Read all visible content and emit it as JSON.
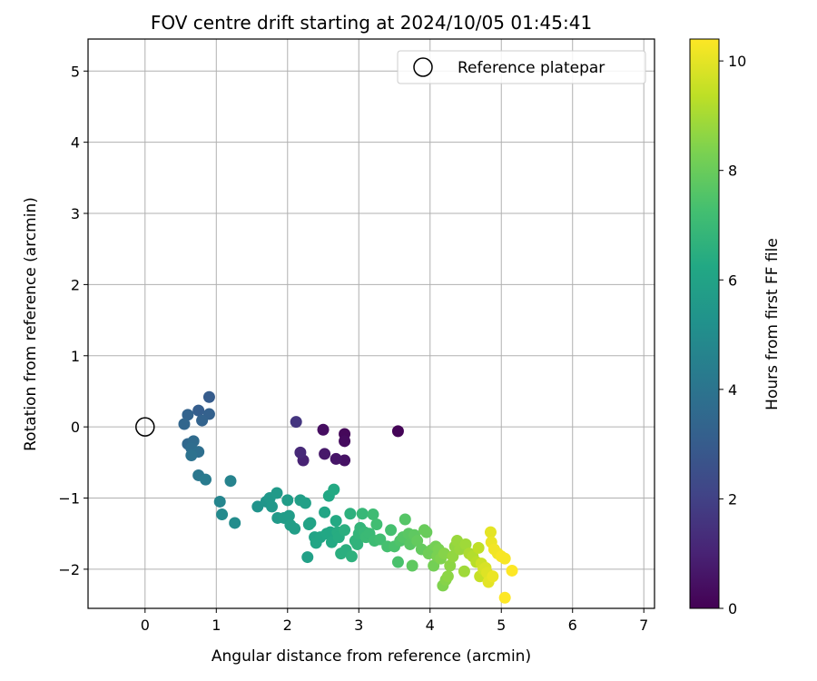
{
  "chart_data": {
    "type": "scatter",
    "title": "FOV centre drift starting at 2024/10/05 01:45:41",
    "xlabel": "Angular distance from reference (arcmin)",
    "ylabel": "Rotation from reference (arcmin)",
    "xlim": [
      -0.8,
      7.15
    ],
    "ylim": [
      -2.55,
      5.45
    ],
    "xticks": [
      0,
      1,
      2,
      3,
      4,
      5,
      6,
      7
    ],
    "yticks": [
      -2,
      -1,
      0,
      1,
      2,
      3,
      4,
      5
    ],
    "grid": true,
    "colormap": "viridis",
    "colorbar": {
      "label": "Hours from first FF file",
      "range": [
        0,
        10.4
      ],
      "ticks": [
        0,
        2,
        4,
        6,
        8,
        10
      ]
    },
    "legend": {
      "placement": "top-right",
      "entries": [
        {
          "label": "Reference platepar",
          "marker": "hollow-circle"
        }
      ]
    },
    "reference_point": {
      "x": 0,
      "y": 0
    },
    "points": [
      {
        "x": 3.55,
        "y": -0.06,
        "c": 0.1
      },
      {
        "x": 2.8,
        "y": -0.1,
        "c": 0.2
      },
      {
        "x": 2.8,
        "y": -0.2,
        "c": 0.3
      },
      {
        "x": 2.5,
        "y": -0.04,
        "c": 0.4
      },
      {
        "x": 2.8,
        "y": -0.47,
        "c": 0.5
      },
      {
        "x": 2.68,
        "y": -0.45,
        "c": 0.6
      },
      {
        "x": 2.52,
        "y": -0.38,
        "c": 0.7
      },
      {
        "x": 2.22,
        "y": -0.47,
        "c": 1.0
      },
      {
        "x": 2.18,
        "y": -0.36,
        "c": 1.2
      },
      {
        "x": 2.12,
        "y": 0.07,
        "c": 1.6
      },
      {
        "x": 0.9,
        "y": 0.42,
        "c": 3.0
      },
      {
        "x": 0.75,
        "y": 0.23,
        "c": 3.1
      },
      {
        "x": 0.9,
        "y": 0.18,
        "c": 3.2
      },
      {
        "x": 0.6,
        "y": 0.17,
        "c": 3.3
      },
      {
        "x": 0.8,
        "y": 0.09,
        "c": 3.3
      },
      {
        "x": 0.55,
        "y": 0.04,
        "c": 3.4
      },
      {
        "x": 0.6,
        "y": -0.24,
        "c": 3.5
      },
      {
        "x": 0.68,
        "y": -0.2,
        "c": 3.6
      },
      {
        "x": 0.65,
        "y": -0.3,
        "c": 3.7
      },
      {
        "x": 0.75,
        "y": -0.35,
        "c": 3.8
      },
      {
        "x": 0.65,
        "y": -0.4,
        "c": 3.9
      },
      {
        "x": 0.75,
        "y": -0.68,
        "c": 4.1
      },
      {
        "x": 0.85,
        "y": -0.74,
        "c": 4.3
      },
      {
        "x": 1.2,
        "y": -0.76,
        "c": 4.6
      },
      {
        "x": 1.05,
        "y": -1.05,
        "c": 4.7
      },
      {
        "x": 1.08,
        "y": -1.23,
        "c": 4.9
      },
      {
        "x": 1.26,
        "y": -1.35,
        "c": 5.0
      },
      {
        "x": 1.58,
        "y": -1.12,
        "c": 5.3
      },
      {
        "x": 1.7,
        "y": -1.05,
        "c": 5.4
      },
      {
        "x": 1.75,
        "y": -1.0,
        "c": 5.5
      },
      {
        "x": 1.78,
        "y": -1.12,
        "c": 5.5
      },
      {
        "x": 1.85,
        "y": -0.93,
        "c": 5.6
      },
      {
        "x": 1.86,
        "y": -1.28,
        "c": 5.6
      },
      {
        "x": 1.95,
        "y": -1.28,
        "c": 5.7
      },
      {
        "x": 2.0,
        "y": -1.03,
        "c": 5.7
      },
      {
        "x": 2.02,
        "y": -1.25,
        "c": 5.7
      },
      {
        "x": 2.04,
        "y": -1.38,
        "c": 5.8
      },
      {
        "x": 2.1,
        "y": -1.43,
        "c": 5.8
      },
      {
        "x": 2.18,
        "y": -1.03,
        "c": 5.8
      },
      {
        "x": 2.25,
        "y": -1.07,
        "c": 5.9
      },
      {
        "x": 2.28,
        "y": -1.83,
        "c": 5.9
      },
      {
        "x": 2.3,
        "y": -1.37,
        "c": 6.0
      },
      {
        "x": 2.32,
        "y": -1.35,
        "c": 6.0
      },
      {
        "x": 2.38,
        "y": -1.55,
        "c": 6.0
      },
      {
        "x": 2.4,
        "y": -1.63,
        "c": 6.1
      },
      {
        "x": 2.46,
        "y": -1.55,
        "c": 6.1
      },
      {
        "x": 2.52,
        "y": -1.2,
        "c": 6.1
      },
      {
        "x": 2.55,
        "y": -1.5,
        "c": 6.2
      },
      {
        "x": 2.58,
        "y": -0.97,
        "c": 6.2
      },
      {
        "x": 2.6,
        "y": -1.48,
        "c": 6.2
      },
      {
        "x": 2.62,
        "y": -1.62,
        "c": 6.3
      },
      {
        "x": 2.65,
        "y": -0.88,
        "c": 6.3
      },
      {
        "x": 2.68,
        "y": -1.32,
        "c": 6.3
      },
      {
        "x": 2.7,
        "y": -1.48,
        "c": 6.4
      },
      {
        "x": 2.72,
        "y": -1.55,
        "c": 6.4
      },
      {
        "x": 2.75,
        "y": -1.78,
        "c": 6.5
      },
      {
        "x": 2.8,
        "y": -1.45,
        "c": 6.5
      },
      {
        "x": 2.82,
        "y": -1.73,
        "c": 6.5
      },
      {
        "x": 2.88,
        "y": -1.22,
        "c": 6.6
      },
      {
        "x": 2.9,
        "y": -1.82,
        "c": 6.6
      },
      {
        "x": 2.95,
        "y": -1.6,
        "c": 6.7
      },
      {
        "x": 2.98,
        "y": -1.65,
        "c": 6.7
      },
      {
        "x": 3.0,
        "y": -1.5,
        "c": 6.8
      },
      {
        "x": 3.02,
        "y": -1.42,
        "c": 6.8
      },
      {
        "x": 3.05,
        "y": -1.22,
        "c": 6.9
      },
      {
        "x": 3.08,
        "y": -1.48,
        "c": 6.9
      },
      {
        "x": 3.1,
        "y": -1.55,
        "c": 7.0
      },
      {
        "x": 3.15,
        "y": -1.5,
        "c": 7.0
      },
      {
        "x": 3.2,
        "y": -1.23,
        "c": 7.1
      },
      {
        "x": 3.22,
        "y": -1.6,
        "c": 7.1
      },
      {
        "x": 3.25,
        "y": -1.37,
        "c": 7.2
      },
      {
        "x": 3.3,
        "y": -1.58,
        "c": 7.2
      },
      {
        "x": 3.4,
        "y": -1.68,
        "c": 7.3
      },
      {
        "x": 3.45,
        "y": -1.45,
        "c": 7.3
      },
      {
        "x": 3.5,
        "y": -1.68,
        "c": 7.4
      },
      {
        "x": 3.55,
        "y": -1.9,
        "c": 7.4
      },
      {
        "x": 3.58,
        "y": -1.6,
        "c": 7.5
      },
      {
        "x": 3.62,
        "y": -1.55,
        "c": 7.6
      },
      {
        "x": 3.65,
        "y": -1.3,
        "c": 7.6
      },
      {
        "x": 3.7,
        "y": -1.5,
        "c": 7.7
      },
      {
        "x": 3.72,
        "y": -1.65,
        "c": 7.7
      },
      {
        "x": 3.75,
        "y": -1.95,
        "c": 7.8
      },
      {
        "x": 3.78,
        "y": -1.52,
        "c": 7.8
      },
      {
        "x": 3.82,
        "y": -1.6,
        "c": 7.9
      },
      {
        "x": 3.88,
        "y": -1.72,
        "c": 7.9
      },
      {
        "x": 3.92,
        "y": -1.45,
        "c": 8.0
      },
      {
        "x": 3.95,
        "y": -1.48,
        "c": 8.0
      },
      {
        "x": 3.98,
        "y": -1.78,
        "c": 8.1
      },
      {
        "x": 4.02,
        "y": -1.73,
        "c": 8.1
      },
      {
        "x": 4.05,
        "y": -1.95,
        "c": 8.2
      },
      {
        "x": 4.08,
        "y": -1.68,
        "c": 8.2
      },
      {
        "x": 4.1,
        "y": -1.82,
        "c": 8.3
      },
      {
        "x": 4.12,
        "y": -1.72,
        "c": 8.3
      },
      {
        "x": 4.15,
        "y": -1.85,
        "c": 8.4
      },
      {
        "x": 4.18,
        "y": -2.23,
        "c": 8.4
      },
      {
        "x": 4.2,
        "y": -1.78,
        "c": 8.5
      },
      {
        "x": 4.22,
        "y": -2.15,
        "c": 8.5
      },
      {
        "x": 4.25,
        "y": -2.1,
        "c": 8.6
      },
      {
        "x": 4.28,
        "y": -1.95,
        "c": 8.6
      },
      {
        "x": 4.32,
        "y": -1.82,
        "c": 8.7
      },
      {
        "x": 4.35,
        "y": -1.68,
        "c": 8.7
      },
      {
        "x": 4.38,
        "y": -1.6,
        "c": 8.8
      },
      {
        "x": 4.42,
        "y": -1.72,
        "c": 8.8
      },
      {
        "x": 4.48,
        "y": -2.03,
        "c": 8.9
      },
      {
        "x": 4.5,
        "y": -1.65,
        "c": 8.9
      },
      {
        "x": 4.55,
        "y": -1.78,
        "c": 9.1
      },
      {
        "x": 4.6,
        "y": -1.82,
        "c": 9.2
      },
      {
        "x": 4.65,
        "y": -1.9,
        "c": 9.3
      },
      {
        "x": 4.68,
        "y": -1.7,
        "c": 9.4
      },
      {
        "x": 4.7,
        "y": -2.1,
        "c": 9.5
      },
      {
        "x": 4.72,
        "y": -1.92,
        "c": 9.6
      },
      {
        "x": 4.75,
        "y": -2.0,
        "c": 9.7
      },
      {
        "x": 4.78,
        "y": -1.98,
        "c": 9.8
      },
      {
        "x": 4.8,
        "y": -2.05,
        "c": 9.9
      },
      {
        "x": 4.82,
        "y": -2.18,
        "c": 10.0
      },
      {
        "x": 4.85,
        "y": -1.48,
        "c": 10.0
      },
      {
        "x": 4.86,
        "y": -1.62,
        "c": 10.1
      },
      {
        "x": 4.88,
        "y": -2.1,
        "c": 10.1
      },
      {
        "x": 4.9,
        "y": -1.72,
        "c": 10.2
      },
      {
        "x": 4.95,
        "y": -1.78,
        "c": 10.2
      },
      {
        "x": 5.0,
        "y": -1.82,
        "c": 10.3
      },
      {
        "x": 5.05,
        "y": -1.85,
        "c": 10.3
      },
      {
        "x": 5.05,
        "y": -2.4,
        "c": 10.4
      },
      {
        "x": 5.15,
        "y": -2.02,
        "c": 10.4
      }
    ]
  }
}
